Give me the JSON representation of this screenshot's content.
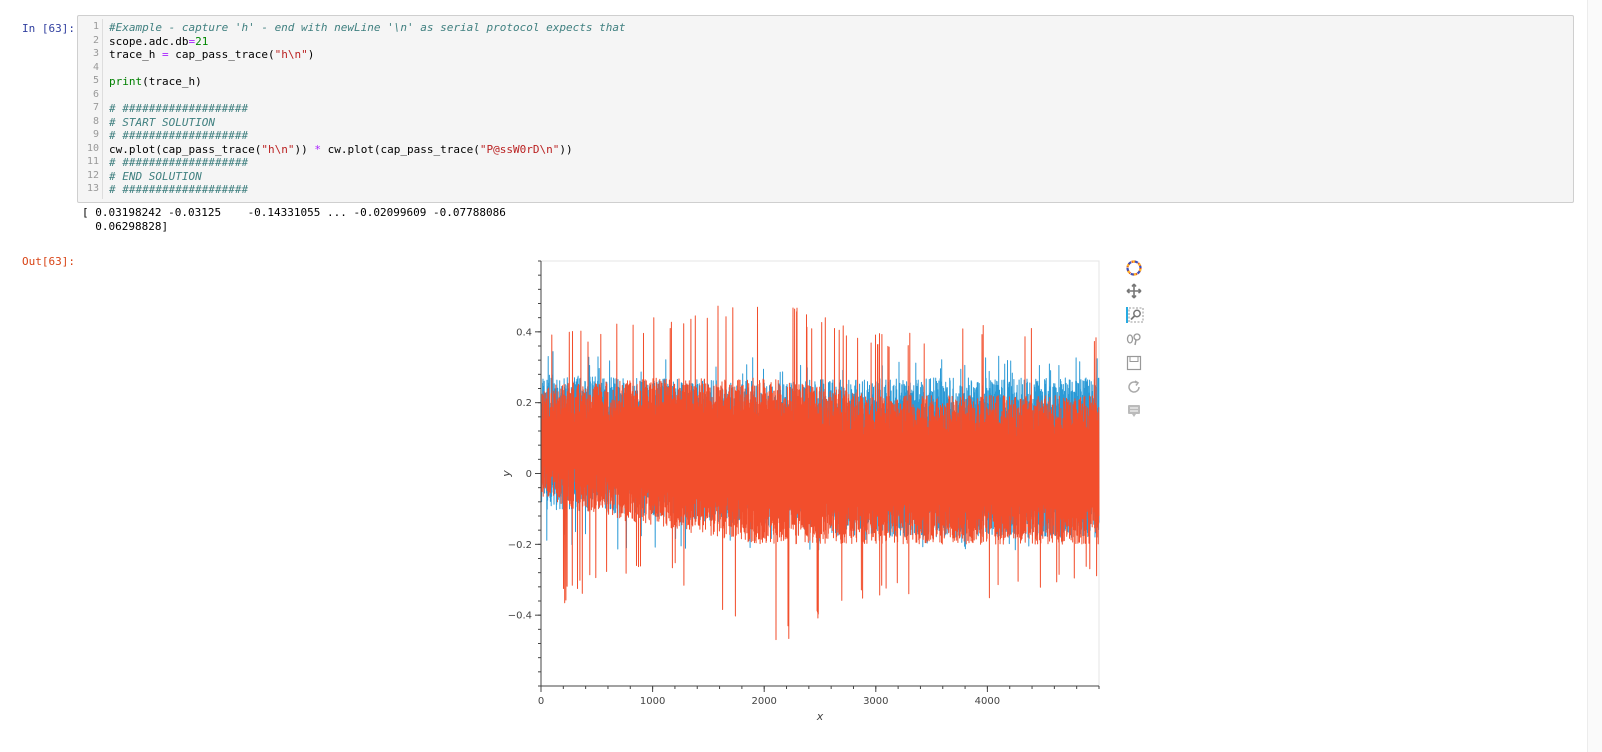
{
  "cells": {
    "input_prompt": "In [63]:",
    "output_prompt": "Out[63]:",
    "line_numbers": [
      "1",
      "2",
      "3",
      "4",
      "5",
      "6",
      "7",
      "8",
      "9",
      "10",
      "11",
      "12",
      "13"
    ],
    "code": {
      "l1": "#Example - capture 'h' - end with newLine '\\n' as serial protocol expects that",
      "l2_a": "scope.adc.db",
      "l2_op": "=",
      "l2_num": "21",
      "l3_a": "trace_h ",
      "l3_op": "=",
      "l3_b": " cap_pass_trace(",
      "l3_str": "\"h\\n\"",
      "l3_c": ")",
      "l5_kw": "print",
      "l5_b": "(trace_h)",
      "l7": "# ###################",
      "l8": "# START SOLUTION",
      "l9": "# ###################",
      "l10_a": "cw.plot(cap_pass_trace(",
      "l10_str1": "\"h\\n\"",
      "l10_b": ")) ",
      "l10_op": "*",
      "l10_c": " cw.plot(cap_pass_trace(",
      "l10_str2": "\"P@ssW0rD\\n\"",
      "l10_d": "))",
      "l11": "# ###################",
      "l12": "# END SOLUTION",
      "l13": "# ###################"
    },
    "stdout_line1": "[ 0.03198242 -0.03125    -0.14331055 ... -0.02099609 -0.07788086",
    "stdout_line2": "  0.06298828]"
  },
  "toolbar": {
    "icons": [
      "bokeh-logo-icon",
      "pan-icon",
      "box-zoom-icon",
      "wheel-zoom-icon",
      "save-icon",
      "reset-icon",
      "hover-icon"
    ],
    "active": "box-zoom-icon",
    "accent": "#26aae1"
  },
  "chart_data": {
    "type": "line",
    "xlabel": "x",
    "ylabel": "y",
    "xlim": [
      0,
      5000
    ],
    "ylim": [
      -0.6,
      0.6
    ],
    "x_ticks": [
      0,
      1000,
      2000,
      3000,
      4000
    ],
    "x_tick_labels": [
      "0",
      "1000",
      "2000",
      "3000",
      "4000"
    ],
    "y_ticks": [
      -0.4,
      -0.2,
      0,
      0.2,
      0.4
    ],
    "y_tick_labels": [
      "−0.4",
      "−0.2",
      "0",
      "0.2",
      "0.4"
    ],
    "grid": false,
    "legend": "none",
    "series": [
      {
        "color": "#2b9ad6",
        "x": [
          0,
          1000,
          2000,
          3000,
          4000,
          5000
        ],
        "envelope_max": [
          0.36,
          0.33,
          0.33,
          0.33,
          0.33,
          0.34
        ],
        "envelope_min": [
          -0.2,
          -0.22,
          -0.22,
          -0.22,
          -0.22,
          -0.21
        ],
        "typical_max": [
          0.28,
          0.27,
          0.26,
          0.27,
          0.27,
          0.27
        ],
        "typical_min": [
          -0.1,
          -0.12,
          -0.15,
          -0.18,
          -0.18,
          -0.18
        ]
      },
      {
        "color": "#f24e2c",
        "x": [
          0,
          1000,
          2000,
          3000,
          4000,
          5000
        ],
        "envelope_max": [
          0.4,
          0.44,
          0.5,
          0.4,
          0.42,
          0.42
        ],
        "envelope_min": [
          -0.4,
          -0.25,
          -0.5,
          -0.35,
          -0.37,
          -0.3
        ],
        "typical_max": [
          0.25,
          0.27,
          0.27,
          0.22,
          0.22,
          0.22
        ],
        "typical_min": [
          -0.08,
          -0.15,
          -0.2,
          -0.2,
          -0.2,
          -0.2
        ]
      }
    ]
  }
}
